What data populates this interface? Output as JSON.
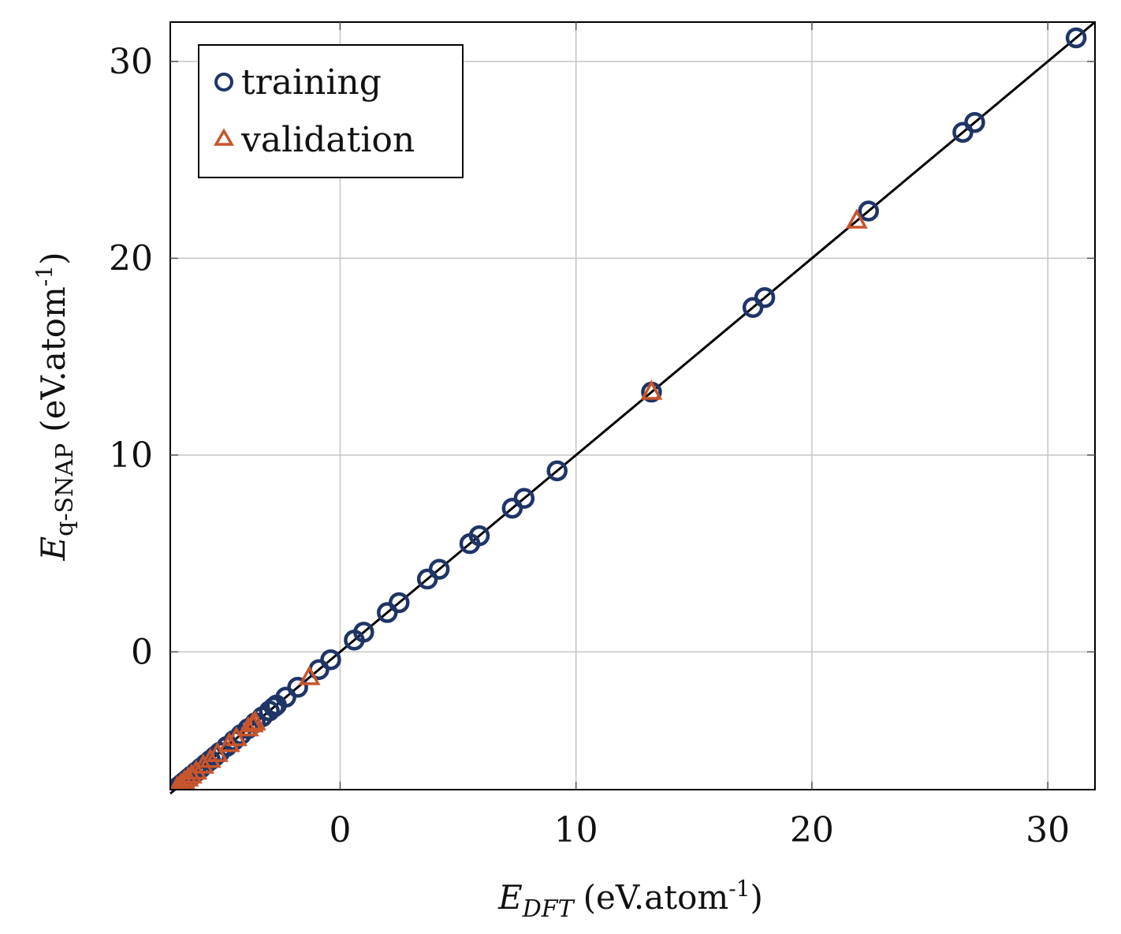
{
  "chart_data": {
    "type": "scatter",
    "xlabel": {
      "symbol": "E",
      "subscript": "DFT",
      "unit": "(eV.atom",
      "superscript": "-1",
      "unit_close": ")"
    },
    "ylabel": {
      "symbol": "E",
      "subscript": "q-SNAP",
      "unit": "(eV.atom",
      "superscript": "-1",
      "unit_close": ")"
    },
    "xlim": [
      -7.2,
      32
    ],
    "ylim": [
      -7,
      32
    ],
    "xticks": [
      0,
      10,
      20,
      30
    ],
    "yticks": [
      0,
      10,
      20,
      30
    ],
    "grid": true,
    "legend_position": "top-left",
    "reference_line": {
      "from": [
        -7.2,
        -7.2
      ],
      "to": [
        32,
        32
      ],
      "color": "#000000"
    },
    "series": [
      {
        "name": "training",
        "marker": "circle",
        "color": "#1f3566",
        "points": [
          [
            -7.0,
            -7.0
          ],
          [
            -6.95,
            -6.95
          ],
          [
            -6.9,
            -6.9
          ],
          [
            -6.85,
            -6.85
          ],
          [
            -6.8,
            -6.8
          ],
          [
            -6.7,
            -6.7
          ],
          [
            -6.6,
            -6.6
          ],
          [
            -6.5,
            -6.5
          ],
          [
            -6.4,
            -6.4
          ],
          [
            -6.3,
            -6.3
          ],
          [
            -6.1,
            -6.1
          ],
          [
            -5.9,
            -5.9
          ],
          [
            -5.7,
            -5.7
          ],
          [
            -5.5,
            -5.5
          ],
          [
            -5.3,
            -5.3
          ],
          [
            -5.1,
            -5.1
          ],
          [
            -4.8,
            -4.8
          ],
          [
            -4.5,
            -4.5
          ],
          [
            -4.2,
            -4.2
          ],
          [
            -3.9,
            -3.9
          ],
          [
            -3.6,
            -3.6
          ],
          [
            -3.3,
            -3.3
          ],
          [
            -3.0,
            -3.0
          ],
          [
            -2.8,
            -2.8
          ],
          [
            -2.7,
            -2.7
          ],
          [
            -2.3,
            -2.3
          ],
          [
            -1.8,
            -1.8
          ],
          [
            -0.9,
            -0.9
          ],
          [
            -0.4,
            -0.4
          ],
          [
            0.6,
            0.6
          ],
          [
            1.0,
            1.0
          ],
          [
            2.0,
            2.0
          ],
          [
            2.5,
            2.5
          ],
          [
            3.7,
            3.7
          ],
          [
            4.2,
            4.2
          ],
          [
            5.5,
            5.5
          ],
          [
            5.9,
            5.9
          ],
          [
            7.3,
            7.3
          ],
          [
            7.8,
            7.8
          ],
          [
            9.2,
            9.2
          ],
          [
            13.2,
            13.2
          ],
          [
            17.5,
            17.5
          ],
          [
            18.0,
            18.0
          ],
          [
            22.4,
            22.4
          ],
          [
            26.4,
            26.4
          ],
          [
            26.9,
            26.9
          ],
          [
            31.2,
            31.2
          ]
        ]
      },
      {
        "name": "validation",
        "marker": "triangle",
        "color": "#c8552c",
        "points": [
          [
            -6.9,
            -6.9
          ],
          [
            -6.75,
            -6.75
          ],
          [
            -6.6,
            -6.6
          ],
          [
            -6.45,
            -6.45
          ],
          [
            -6.3,
            -6.3
          ],
          [
            -6.1,
            -6.1
          ],
          [
            -5.8,
            -5.8
          ],
          [
            -5.5,
            -5.5
          ],
          [
            -5.2,
            -5.2
          ],
          [
            -4.7,
            -4.7
          ],
          [
            -4.4,
            -4.4
          ],
          [
            -3.9,
            -3.9
          ],
          [
            -3.7,
            -3.7
          ],
          [
            -3.6,
            -3.6
          ],
          [
            -1.3,
            -1.3
          ],
          [
            13.2,
            13.2
          ],
          [
            21.9,
            21.9
          ]
        ]
      }
    ]
  }
}
